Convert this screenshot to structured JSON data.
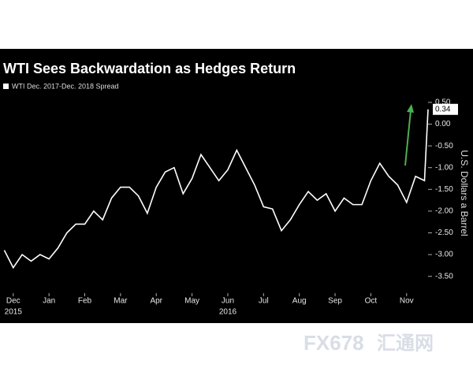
{
  "chart_data": {
    "type": "line",
    "title": "WTI Sees Backwardation as Hedges Return",
    "y_axis_label": "U.S. Dollars a Barrel",
    "watermark": {
      "brand": "FX678",
      "name": "汇通网"
    },
    "x": [
      -0.25,
      0,
      0.25,
      0.5,
      0.75,
      1,
      1.25,
      1.5,
      1.75,
      2,
      2.25,
      2.5,
      2.75,
      3,
      3.25,
      3.5,
      3.75,
      4,
      4.25,
      4.5,
      4.75,
      5,
      5.25,
      5.5,
      5.75,
      6,
      6.25,
      6.5,
      6.75,
      7,
      7.25,
      7.5,
      7.75,
      8,
      8.25,
      8.5,
      8.75,
      9,
      9.25,
      9.5,
      9.75,
      10,
      10.25,
      10.5,
      10.75,
      11,
      11.25,
      11.5,
      11.6
    ],
    "series": [
      {
        "name": "WTI Dec. 2017-Dec. 2018 Spread",
        "color": "#ffffff",
        "values": [
          -2.9,
          -3.3,
          -3.0,
          -3.15,
          -3.0,
          -3.1,
          -2.85,
          -2.5,
          -2.3,
          -2.3,
          -2.0,
          -2.2,
          -1.7,
          -1.45,
          -1.45,
          -1.65,
          -2.05,
          -1.45,
          -1.1,
          -1.0,
          -1.6,
          -1.25,
          -0.7,
          -1.0,
          -1.3,
          -1.05,
          -0.6,
          -1.0,
          -1.4,
          -1.9,
          -1.95,
          -2.45,
          -2.2,
          -1.85,
          -1.55,
          -1.75,
          -1.6,
          -2.0,
          -1.7,
          -1.85,
          -1.85,
          -1.3,
          -0.9,
          -1.2,
          -1.4,
          -1.8,
          -1.2,
          -1.3,
          0.34
        ]
      }
    ],
    "xlim": [
      -0.37,
      11.6
    ],
    "xticks": [
      {
        "value": 0,
        "label": "Dec"
      },
      {
        "value": 1,
        "label": "Jan"
      },
      {
        "value": 2,
        "label": "Feb"
      },
      {
        "value": 3,
        "label": "Mar"
      },
      {
        "value": 4,
        "label": "Apr"
      },
      {
        "value": 5,
        "label": "May"
      },
      {
        "value": 6,
        "label": "Jun"
      },
      {
        "value": 7,
        "label": "Jul"
      },
      {
        "value": 8,
        "label": "Aug"
      },
      {
        "value": 9,
        "label": "Sep"
      },
      {
        "value": 10,
        "label": "Oct"
      },
      {
        "value": 11,
        "label": "Nov"
      }
    ],
    "year_labels": [
      {
        "value": 0,
        "label": "2015"
      },
      {
        "value": 6,
        "label": "2016"
      }
    ],
    "ylim": [
      -3.85,
      0.68
    ],
    "yticks": [
      {
        "value": 0.5,
        "label": "0.50"
      },
      {
        "value": 0,
        "label": "0.00"
      },
      {
        "value": -0.5,
        "label": "-0.50"
      },
      {
        "value": -1,
        "label": "-1.00"
      },
      {
        "value": -1.5,
        "label": "-1.50"
      },
      {
        "value": -2,
        "label": "-2.00"
      },
      {
        "value": -2.5,
        "label": "-2.50"
      },
      {
        "value": -3,
        "label": "-3.00"
      },
      {
        "value": -3.5,
        "label": "-3.50"
      }
    ],
    "background": "#000000",
    "grid": false
  }
}
